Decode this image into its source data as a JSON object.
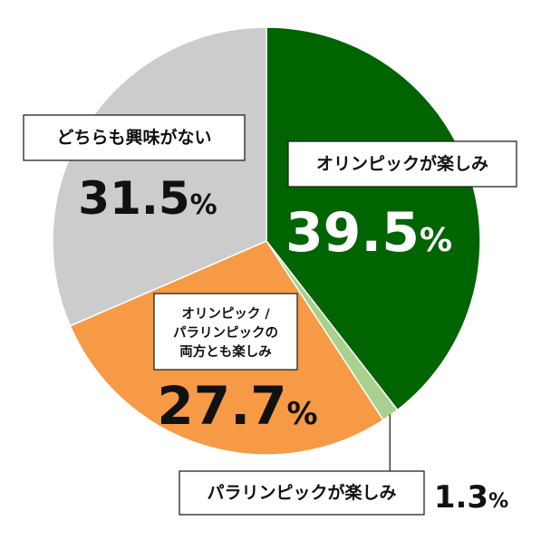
{
  "chart_data": {
    "type": "pie",
    "title": "",
    "start": "12 o'clock",
    "direction": "clockwise",
    "series": [
      {
        "name": "オリンピックが楽しみ",
        "label_lines": [
          "オリンピックが楽しみ"
        ],
        "value": 39.5,
        "display": "39.5",
        "color": "#006400"
      },
      {
        "name": "パラリンピックが楽しみ",
        "label_lines": [
          "パラリンピックが楽しみ"
        ],
        "value": 1.3,
        "display": "1.3",
        "color": "#a9d18e"
      },
      {
        "name": "オリンピック／パラリンピックの両方とも楽しみ",
        "label_lines": [
          "オリンピック /",
          "パラリンピックの",
          "両方とも楽しみ"
        ],
        "value": 27.7,
        "display": "27.7",
        "color": "#f79a45"
      },
      {
        "name": "どちらも興味がない",
        "label_lines": [
          "どちらも興味がない"
        ],
        "value": 31.5,
        "display": "31.5",
        "color": "#cccccc"
      }
    ],
    "percent_sign": "%"
  }
}
